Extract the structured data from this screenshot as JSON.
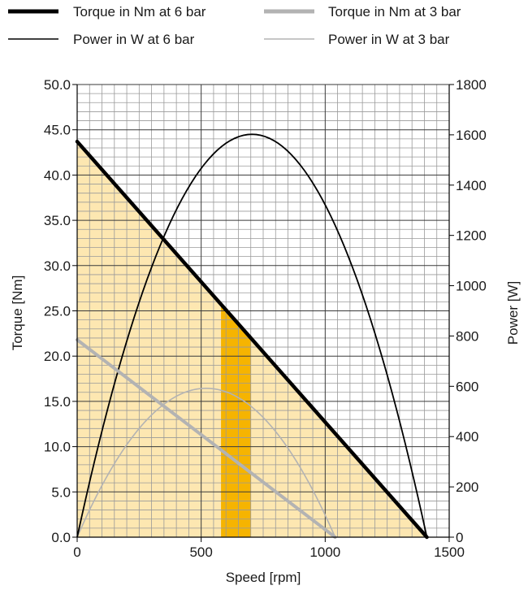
{
  "chart_data": {
    "type": "line",
    "xlabel": "Speed [rpm]",
    "ylabel_left": "Torque [Nm]",
    "ylabel_right": "Power [W]",
    "xlim": [
      0,
      1500
    ],
    "ylim_left": [
      0,
      50
    ],
    "ylim_right": [
      0,
      1800
    ],
    "x_ticks": [
      {
        "value": 0,
        "label": "0"
      },
      {
        "value": 500,
        "label": "500"
      },
      {
        "value": 1000,
        "label": "1000"
      },
      {
        "value": 1500,
        "label": "1500"
      }
    ],
    "y_left_ticks": [
      {
        "value": 0,
        "label": "0.0"
      },
      {
        "value": 5,
        "label": "5.0"
      },
      {
        "value": 10,
        "label": "10.0"
      },
      {
        "value": 15,
        "label": "15.0"
      },
      {
        "value": 20,
        "label": "20.0"
      },
      {
        "value": 25,
        "label": "25.0"
      },
      {
        "value": 30,
        "label": "30.0"
      },
      {
        "value": 35,
        "label": "35.0"
      },
      {
        "value": 40,
        "label": "40.0"
      },
      {
        "value": 45,
        "label": "45.0"
      },
      {
        "value": 50,
        "label": "50.0"
      }
    ],
    "y_right_ticks": [
      {
        "value": 0,
        "label": "0"
      },
      {
        "value": 200,
        "label": "200"
      },
      {
        "value": 400,
        "label": "400"
      },
      {
        "value": 600,
        "label": "600"
      },
      {
        "value": 800,
        "label": "800"
      },
      {
        "value": 1000,
        "label": "1000"
      },
      {
        "value": 1200,
        "label": "1200"
      },
      {
        "value": 1400,
        "label": "1400"
      },
      {
        "value": 1600,
        "label": "1600"
      },
      {
        "value": 1800,
        "label": "1800"
      }
    ],
    "grid": true,
    "legend_position": "top",
    "series": [
      {
        "name": "Torque in Nm at 6 bar",
        "axis": "left",
        "color": "#000000",
        "style": "thick",
        "x": [
          0,
          1410
        ],
        "y": [
          43.7,
          0
        ]
      },
      {
        "name": "Torque in Nm at 3 bar",
        "axis": "left",
        "color": "#b3b3b3",
        "style": "thick",
        "x": [
          0,
          1040
        ],
        "y": [
          21.8,
          0
        ]
      },
      {
        "name": "Power in W at 6 bar",
        "axis": "right",
        "color": "#000000",
        "style": "thin",
        "x": [
          0,
          705,
          1410
        ],
        "y": [
          0,
          1602,
          0
        ]
      },
      {
        "name": "Power in W at 3 bar",
        "axis": "right",
        "color": "#b3b3b3",
        "style": "thin",
        "x": [
          0,
          520,
          1040
        ],
        "y": [
          0,
          592,
          0
        ]
      }
    ],
    "operating_region": {
      "fill": "#fde7b1",
      "under": "Torque in Nm at 6 bar"
    },
    "highlight_band": {
      "x_from": 580,
      "x_to": 700,
      "fill": "#f6b400",
      "under": "Torque in Nm at 6 bar"
    }
  }
}
